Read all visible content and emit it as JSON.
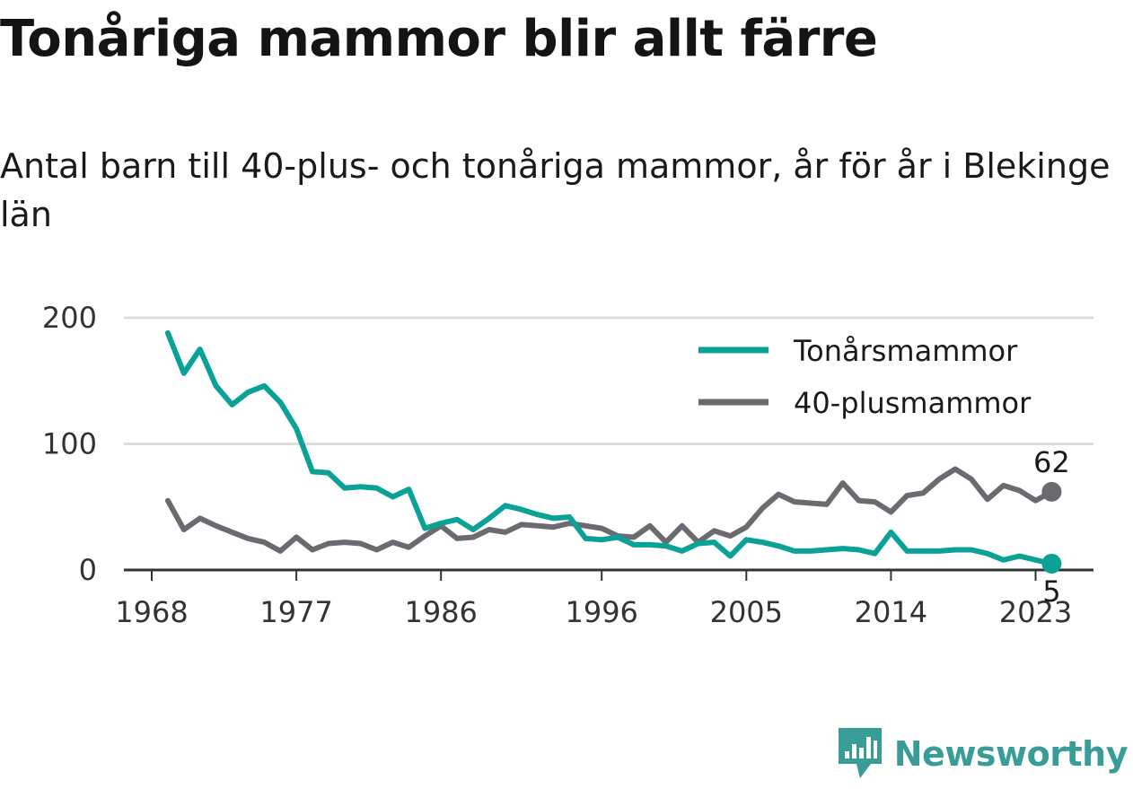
{
  "title": "Tonåriga mammor blir allt färre",
  "subtitle": "Antal barn till 40-plus- och tonåriga mammor, år för år i Blekinge län",
  "brand": {
    "name": "Newsworthy",
    "icon": "newsworthy-logo-icon",
    "color": "#3a9c97"
  },
  "chart_data": {
    "type": "line",
    "x_ticks": [
      "1968",
      "1977",
      "1986",
      "1996",
      "2005",
      "2014",
      "2023"
    ],
    "y_ticks": [
      "0",
      "100",
      "200"
    ],
    "ylim": [
      0,
      200
    ],
    "xlim": [
      1967,
      2026
    ],
    "grid": true,
    "legend": "top-right",
    "years": [
      1969,
      1970,
      1971,
      1972,
      1973,
      1974,
      1975,
      1976,
      1977,
      1978,
      1979,
      1980,
      1981,
      1982,
      1983,
      1984,
      1985,
      1986,
      1987,
      1988,
      1989,
      1990,
      1991,
      1992,
      1993,
      1994,
      1995,
      1996,
      1997,
      1998,
      1999,
      2000,
      2001,
      2002,
      2003,
      2004,
      2005,
      2006,
      2007,
      2008,
      2009,
      2010,
      2011,
      2012,
      2013,
      2014,
      2015,
      2016,
      2017,
      2018,
      2019,
      2020,
      2021,
      2022,
      2023,
      2024
    ],
    "series": [
      {
        "name": "Tonårsmammor",
        "color": "#0aa197",
        "end_label": "5",
        "values": [
          188,
          156,
          175,
          146,
          131,
          141,
          146,
          133,
          112,
          78,
          77,
          65,
          66,
          65,
          58,
          64,
          33,
          37,
          40,
          32,
          41,
          51,
          48,
          44,
          41,
          42,
          25,
          24,
          26,
          20,
          20,
          19,
          15,
          21,
          22,
          11,
          24,
          22,
          19,
          15,
          15,
          16,
          17,
          16,
          13,
          30,
          15,
          15,
          15,
          16,
          16,
          13,
          8,
          11,
          8,
          5
        ]
      },
      {
        "name": "40-plusmammor",
        "color": "#6b6a70",
        "end_label": "62",
        "values": [
          55,
          32,
          41,
          35,
          30,
          25,
          22,
          15,
          26,
          16,
          21,
          22,
          21,
          16,
          22,
          18,
          27,
          35,
          25,
          26,
          32,
          30,
          36,
          35,
          34,
          37,
          35,
          33,
          27,
          26,
          35,
          22,
          35,
          22,
          31,
          27,
          34,
          49,
          60,
          54,
          53,
          52,
          69,
          55,
          54,
          46,
          59,
          61,
          72,
          80,
          72,
          56,
          67,
          63,
          55,
          62
        ]
      }
    ]
  }
}
